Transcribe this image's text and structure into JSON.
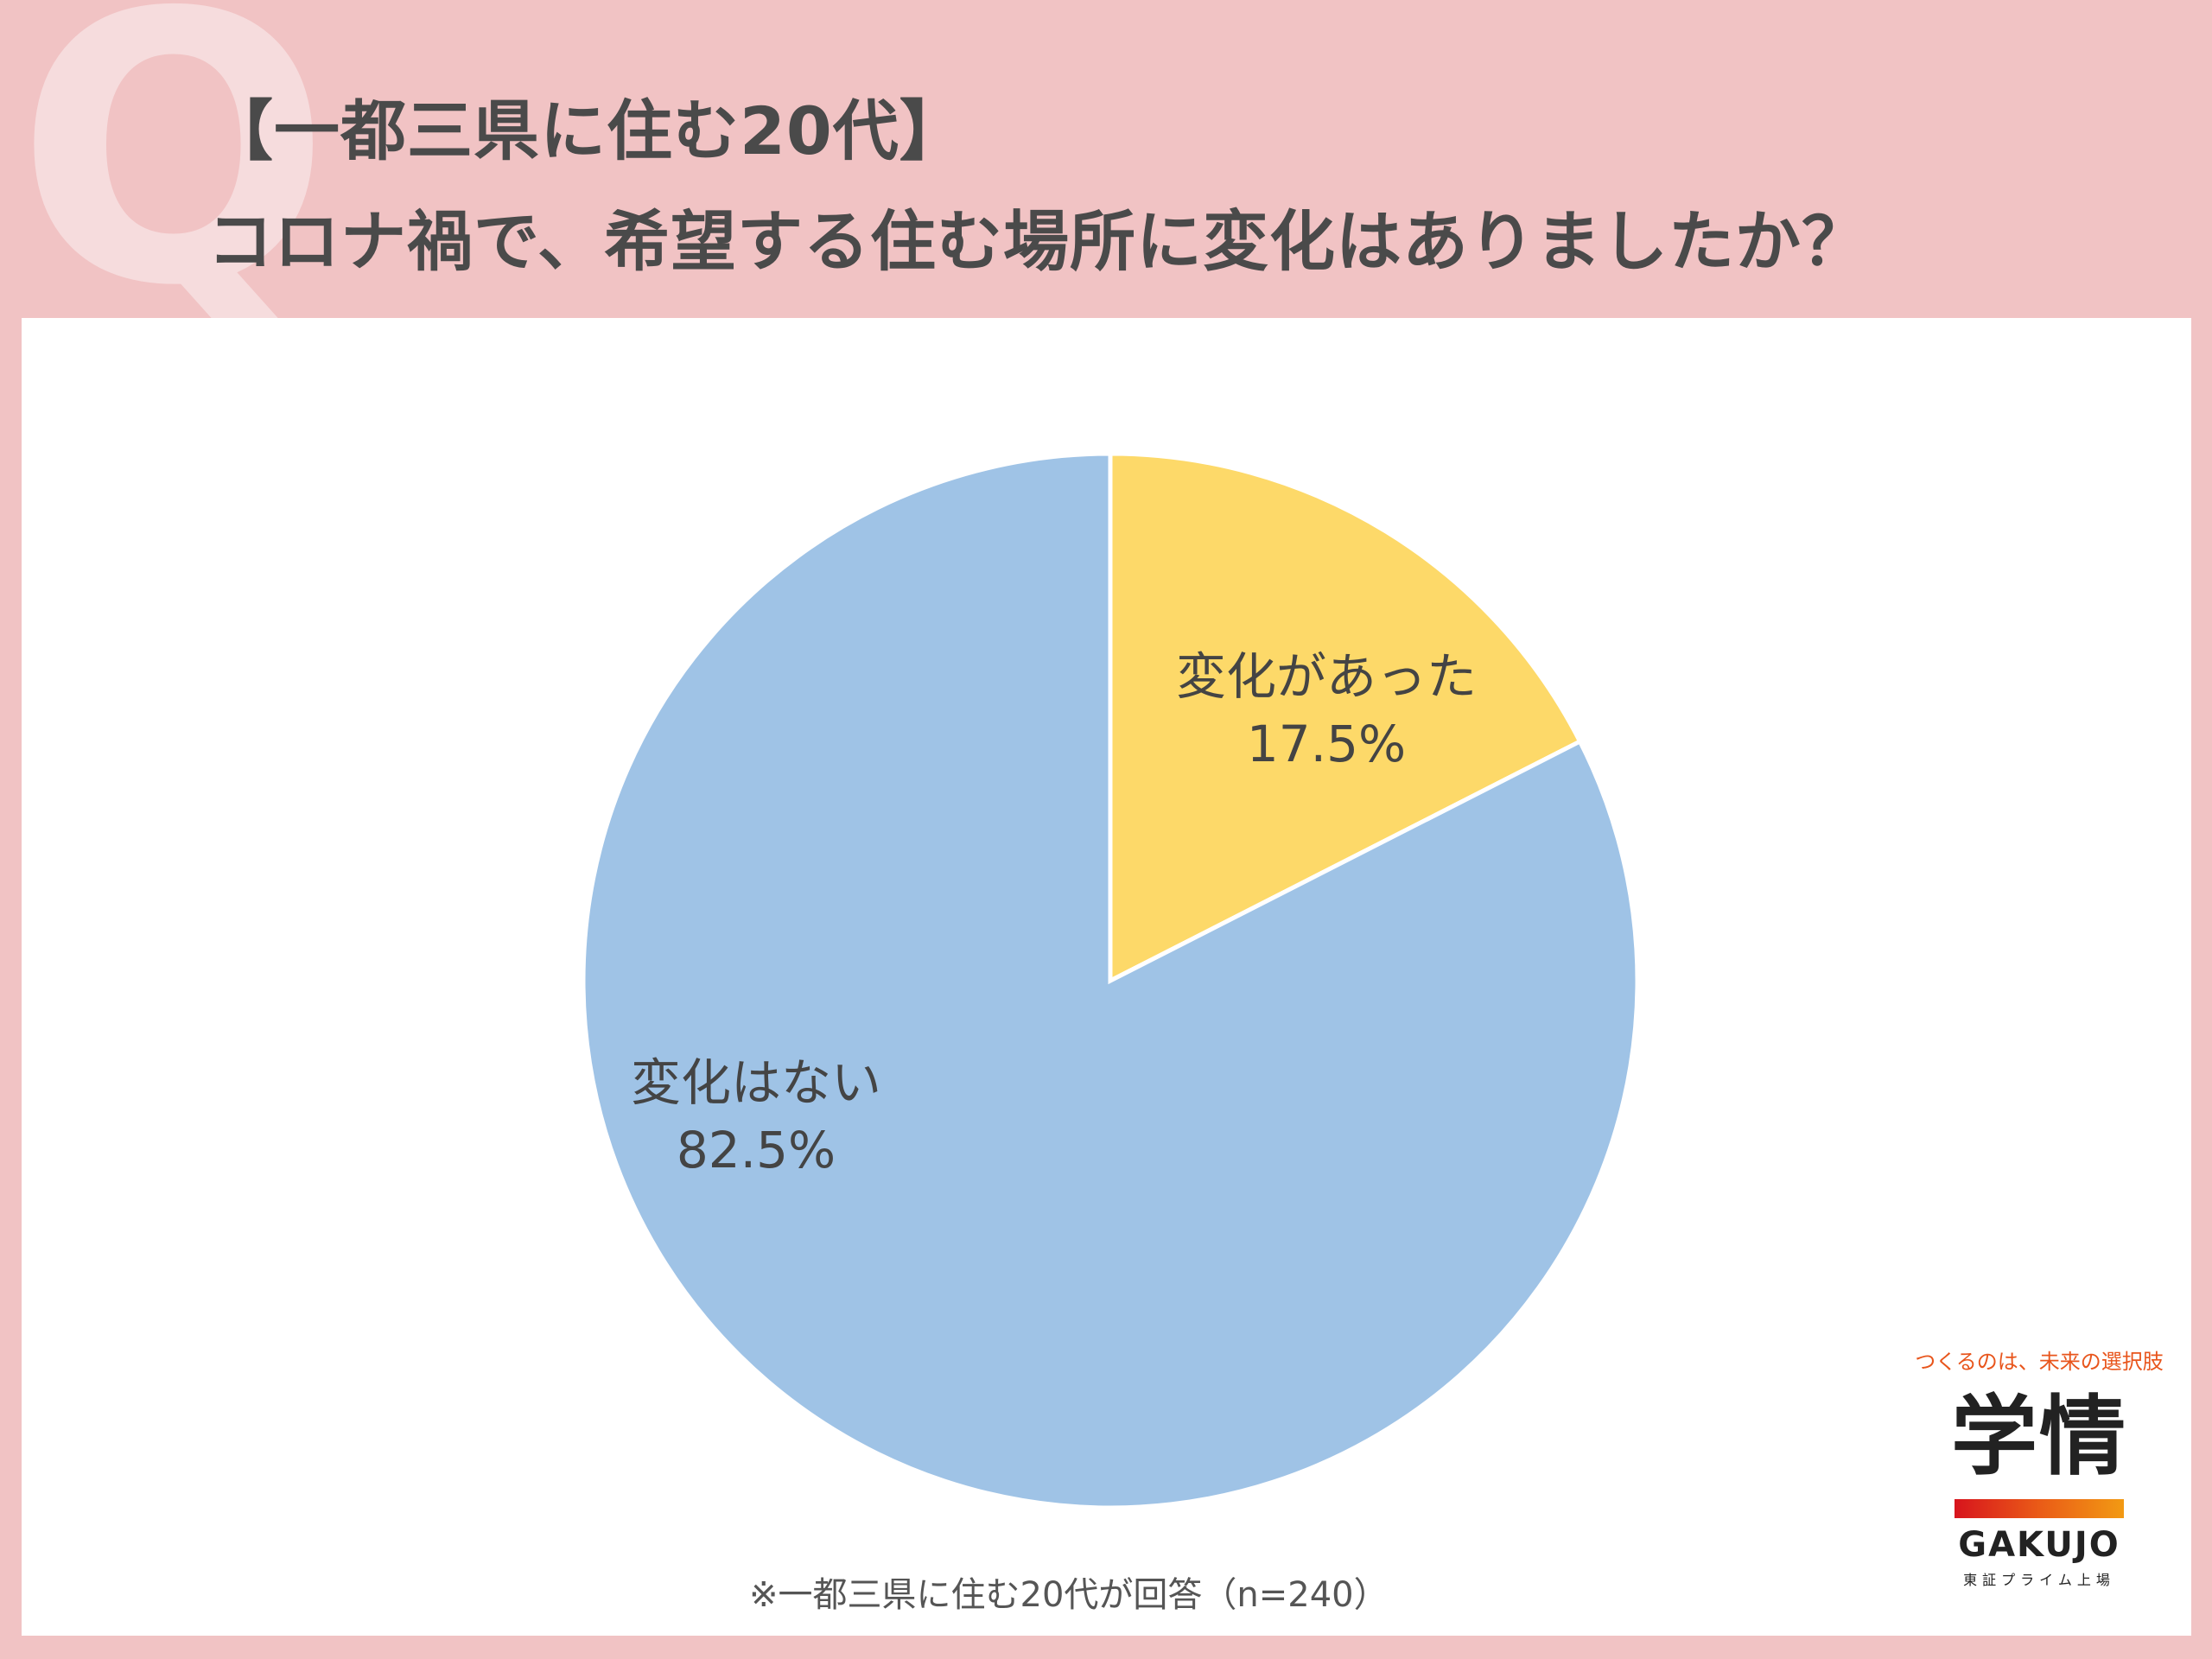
{
  "header": {
    "q_mark": "Q",
    "title_line1": "【一都三県に住む20代】",
    "title_line2": "コロナ禍で、希望する住む場所に変化はありましたか？"
  },
  "chart_data": {
    "type": "pie",
    "title": "",
    "slices": [
      {
        "label": "変化があった",
        "value": 17.5,
        "display": "17.5%",
        "color": "#fdd969"
      },
      {
        "label": "変化はない",
        "value": 82.5,
        "display": "82.5%",
        "color": "#9fc3e6"
      }
    ]
  },
  "footnote": "※一都三県に住む20代が回答（n=240）",
  "logo": {
    "tagline": "つくるのは、未来の選択肢",
    "brand_jp": "学情",
    "brand_en": "GAKUJO",
    "market": "東証プライム上場"
  }
}
